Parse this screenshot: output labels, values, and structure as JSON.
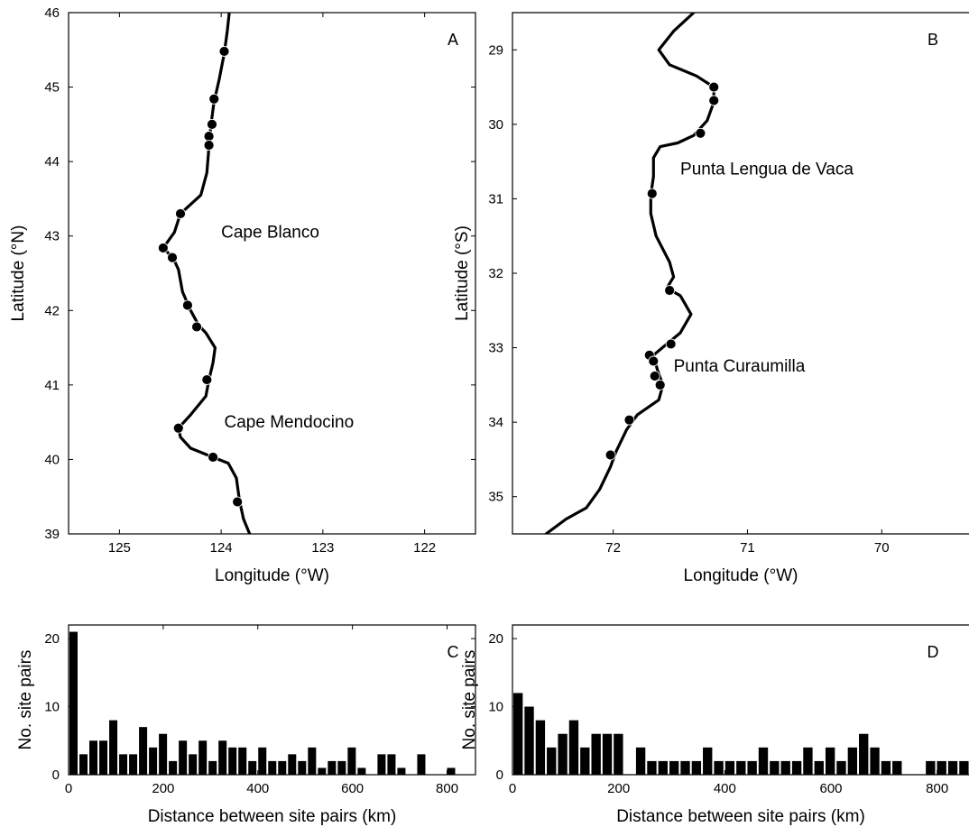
{
  "chart_data": [
    {
      "panel": "A",
      "type": "map",
      "xlabel": "Longitude (°W)",
      "ylabel": "Latitude (°N)",
      "xlim": [
        125.5,
        121.5
      ],
      "ylim": [
        39,
        46
      ],
      "xticks": [
        125,
        124,
        123,
        122
      ],
      "yticks": [
        39,
        40,
        41,
        42,
        43,
        44,
        45,
        46
      ],
      "coastline": [
        [
          123.72,
          39.0
        ],
        [
          123.78,
          39.2
        ],
        [
          123.82,
          39.45
        ],
        [
          123.85,
          39.75
        ],
        [
          123.93,
          39.95
        ],
        [
          124.08,
          40.03
        ],
        [
          124.3,
          40.15
        ],
        [
          124.4,
          40.3
        ],
        [
          124.42,
          40.42
        ],
        [
          124.3,
          40.6
        ],
        [
          124.15,
          40.85
        ],
        [
          124.12,
          41.07
        ],
        [
          124.08,
          41.3
        ],
        [
          124.06,
          41.5
        ],
        [
          124.15,
          41.7
        ],
        [
          124.22,
          41.8
        ],
        [
          124.3,
          42.0
        ],
        [
          124.38,
          42.25
        ],
        [
          124.42,
          42.55
        ],
        [
          124.47,
          42.7
        ],
        [
          124.57,
          42.84
        ],
        [
          124.46,
          43.05
        ],
        [
          124.4,
          43.3
        ],
        [
          124.2,
          43.55
        ],
        [
          124.14,
          43.85
        ],
        [
          124.12,
          44.2
        ],
        [
          124.1,
          44.5
        ],
        [
          124.07,
          44.8
        ],
        [
          124.02,
          45.1
        ],
        [
          123.97,
          45.45
        ],
        [
          123.94,
          45.75
        ],
        [
          123.92,
          46.0
        ]
      ],
      "sites": [
        [
          123.97,
          45.48
        ],
        [
          124.07,
          44.84
        ],
        [
          124.09,
          44.5
        ],
        [
          124.12,
          44.34
        ],
        [
          124.12,
          44.22
        ],
        [
          124.4,
          43.3
        ],
        [
          124.57,
          42.84
        ],
        [
          124.48,
          42.71
        ],
        [
          124.33,
          42.07
        ],
        [
          124.24,
          41.78
        ],
        [
          124.14,
          41.07
        ],
        [
          124.42,
          40.42
        ],
        [
          124.08,
          40.03
        ],
        [
          123.84,
          39.43
        ]
      ],
      "labels": [
        {
          "text": "Cape Blanco",
          "lon": 124.0,
          "lat": 43.05
        },
        {
          "text": "Cape Mendocino",
          "lon": 123.97,
          "lat": 40.5
        }
      ]
    },
    {
      "panel": "B",
      "type": "map",
      "xlabel": "Longitude (°W)",
      "ylabel": "Latitude (°S)",
      "xlim": [
        72.75,
        69.35
      ],
      "ylim": [
        35.5,
        28.5
      ],
      "xticks": [
        72,
        71,
        70
      ],
      "yticks": [
        29,
        30,
        31,
        32,
        33,
        34,
        35
      ],
      "coastline": [
        [
          72.5,
          35.5
        ],
        [
          72.35,
          35.3
        ],
        [
          72.2,
          35.15
        ],
        [
          72.1,
          34.9
        ],
        [
          72.02,
          34.6
        ],
        [
          71.98,
          34.4
        ],
        [
          71.9,
          34.1
        ],
        [
          71.82,
          33.9
        ],
        [
          71.66,
          33.7
        ],
        [
          71.63,
          33.5
        ],
        [
          71.67,
          33.3
        ],
        [
          71.7,
          33.1
        ],
        [
          71.6,
          32.95
        ],
        [
          71.5,
          32.8
        ],
        [
          71.42,
          32.55
        ],
        [
          71.5,
          32.3
        ],
        [
          71.6,
          32.2
        ],
        [
          71.55,
          32.05
        ],
        [
          71.58,
          31.85
        ],
        [
          71.68,
          31.5
        ],
        [
          71.72,
          31.2
        ],
        [
          71.72,
          30.95
        ],
        [
          71.7,
          30.7
        ],
        [
          71.7,
          30.45
        ],
        [
          71.65,
          30.3
        ],
        [
          71.52,
          30.25
        ],
        [
          71.4,
          30.15
        ],
        [
          71.3,
          29.95
        ],
        [
          71.25,
          29.7
        ],
        [
          71.25,
          29.5
        ],
        [
          71.38,
          29.35
        ],
        [
          71.58,
          29.2
        ],
        [
          71.66,
          29.0
        ],
        [
          71.55,
          28.75
        ],
        [
          71.4,
          28.5
        ]
      ],
      "sites": [
        [
          71.25,
          29.5
        ],
        [
          71.25,
          29.68
        ],
        [
          71.35,
          30.12
        ],
        [
          71.71,
          30.93
        ],
        [
          71.58,
          32.23
        ],
        [
          71.57,
          32.95
        ],
        [
          71.73,
          33.1
        ],
        [
          71.7,
          33.18
        ],
        [
          71.69,
          33.38
        ],
        [
          71.65,
          33.5
        ],
        [
          71.88,
          33.97
        ],
        [
          72.02,
          34.44
        ]
      ],
      "labels": [
        {
          "text": "Punta Lengua de Vaca",
          "lon": 71.5,
          "lat": 30.6
        },
        {
          "text": "Punta Curaumilla",
          "lon": 71.55,
          "lat": 33.25
        }
      ]
    },
    {
      "panel": "C",
      "type": "bar",
      "xlabel": "Distance between site pairs (km)",
      "ylabel": "No. site pairs",
      "xlim": [
        0,
        860
      ],
      "ylim": [
        0,
        22
      ],
      "xticks": [
        0,
        200,
        400,
        600,
        800
      ],
      "yticks": [
        0,
        10,
        20
      ],
      "bin_width": 21,
      "bin_starts": [
        0,
        21,
        42,
        63,
        84,
        105,
        126,
        147,
        168,
        189,
        210,
        231,
        252,
        273,
        294,
        315,
        336,
        357,
        378,
        399,
        420,
        441,
        462,
        483,
        504,
        525,
        546,
        567,
        588,
        609,
        630,
        651,
        672,
        693,
        714,
        735,
        756,
        777,
        798
      ],
      "values": [
        21,
        3,
        5,
        5,
        8,
        3,
        3,
        7,
        4,
        6,
        2,
        5,
        3,
        5,
        2,
        5,
        4,
        4,
        2,
        4,
        2,
        2,
        3,
        2,
        4,
        1,
        2,
        2,
        4,
        1,
        0,
        3,
        3,
        1,
        0,
        3,
        0,
        0,
        1
      ]
    },
    {
      "panel": "D",
      "type": "bar",
      "xlabel": "Distance between site pairs (km)",
      "ylabel": "No. site pairs",
      "xlim": [
        0,
        860
      ],
      "ylim": [
        0,
        22
      ],
      "xticks": [
        0,
        200,
        400,
        600,
        800
      ],
      "yticks": [
        0,
        10,
        20
      ],
      "bin_width": 21,
      "bin_starts": [
        0,
        21,
        42,
        63,
        84,
        105,
        126,
        147,
        168,
        189,
        210,
        231,
        252,
        273,
        294,
        315,
        336,
        357,
        378,
        399,
        420,
        441,
        462,
        483,
        504,
        525,
        546,
        567,
        588,
        609,
        630,
        651,
        672,
        693,
        714,
        735,
        756,
        777,
        798,
        819,
        840
      ],
      "values": [
        12,
        10,
        8,
        4,
        6,
        8,
        4,
        6,
        6,
        6,
        0,
        4,
        2,
        2,
        2,
        2,
        2,
        4,
        2,
        2,
        2,
        2,
        4,
        2,
        2,
        2,
        4,
        2,
        4,
        2,
        4,
        6,
        4,
        2,
        2,
        0,
        0,
        2,
        2,
        2,
        2
      ]
    }
  ]
}
